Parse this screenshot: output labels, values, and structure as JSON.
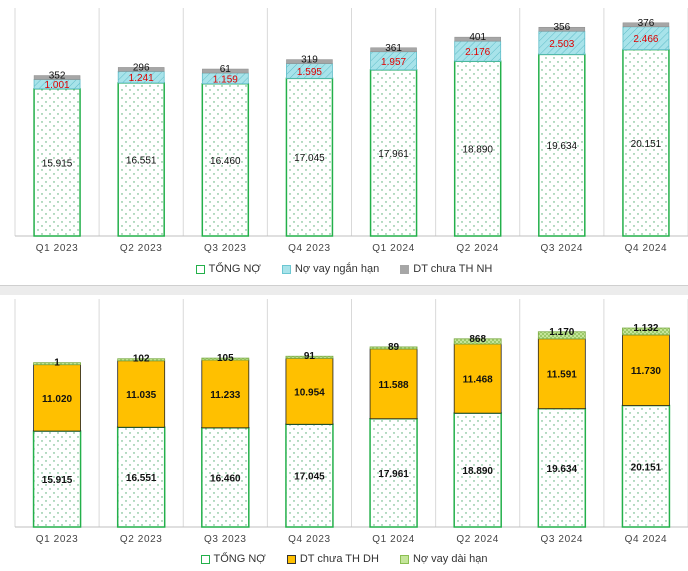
{
  "colors": {
    "total_fill": "#ffffff",
    "total_border": "#23b04a",
    "short_loan": "#a8e3ea",
    "dt_nh": "#a6a6a6",
    "dt_dh": "#ffc000",
    "long_loan": "#c4e59a",
    "red_label": "#e00000",
    "grid": "#d9d9d9"
  },
  "chart_data": [
    {
      "type": "bar",
      "stacked": true,
      "categories": [
        "Q1 2023",
        "Q2 2023",
        "Q3 2023",
        "Q4 2023",
        "Q1 2024",
        "Q2 2024",
        "Q3 2024",
        "Q4 2024"
      ],
      "series": [
        {
          "name": "TỔNG NỢ",
          "values": [
            15915,
            16551,
            16460,
            17045,
            17961,
            18890,
            19634,
            20151
          ],
          "labels": [
            "15.915",
            "16.551",
            "16.460",
            "17.045",
            "17.961",
            "18.890",
            "19.634",
            "20.151"
          ]
        },
        {
          "name": "Nợ vay ngắn hạn",
          "values": [
            1001,
            1241,
            1159,
            1595,
            1957,
            2176,
            2503,
            2466
          ],
          "labels": [
            "1.001",
            "1.241",
            "1.159",
            "1.595",
            "1.957",
            "2.176",
            "2.503",
            "2.466"
          ]
        },
        {
          "name": "DT chưa TH NH",
          "values": [
            352,
            296,
            61,
            319,
            361,
            401,
            356,
            376
          ],
          "labels": [
            "352",
            "296",
            "61",
            "319",
            "361",
            "401",
            "356",
            "376"
          ]
        }
      ],
      "ylim": [
        0,
        24000
      ],
      "grid": "vertical",
      "legend": "bottom",
      "xlabel": "",
      "ylabel": ""
    },
    {
      "type": "bar",
      "stacked": true,
      "categories": [
        "Q1 2023",
        "Q2 2023",
        "Q3 2023",
        "Q4 2023",
        "Q1 2024",
        "Q2 2024",
        "Q3 2024",
        "Q4 2024"
      ],
      "series": [
        {
          "name": "TỔNG NỢ",
          "values": [
            15915,
            16551,
            16460,
            17045,
            17961,
            18890,
            19634,
            20151
          ],
          "labels": [
            "15.915",
            "16.551",
            "16.460",
            "17.045",
            "17.961",
            "18.890",
            "19.634",
            "20.151"
          ]
        },
        {
          "name": "DT chưa TH DH",
          "values": [
            11020,
            11035,
            11233,
            10954,
            11588,
            11468,
            11591,
            11730
          ],
          "labels": [
            "11.020",
            "11.035",
            "11.233",
            "10.954",
            "11.588",
            "11.468",
            "11.591",
            "11.730"
          ]
        },
        {
          "name": "Nợ vay dài hạn",
          "values": [
            1,
            102,
            105,
            91,
            89,
            868,
            1170,
            1132
          ],
          "labels": [
            "1",
            "102",
            "105",
            "91",
            "89",
            "868",
            "1.170",
            "1.132"
          ]
        }
      ],
      "ylim": [
        0,
        37000
      ],
      "grid": "vertical",
      "legend": "bottom",
      "xlabel": "",
      "ylabel": ""
    }
  ]
}
